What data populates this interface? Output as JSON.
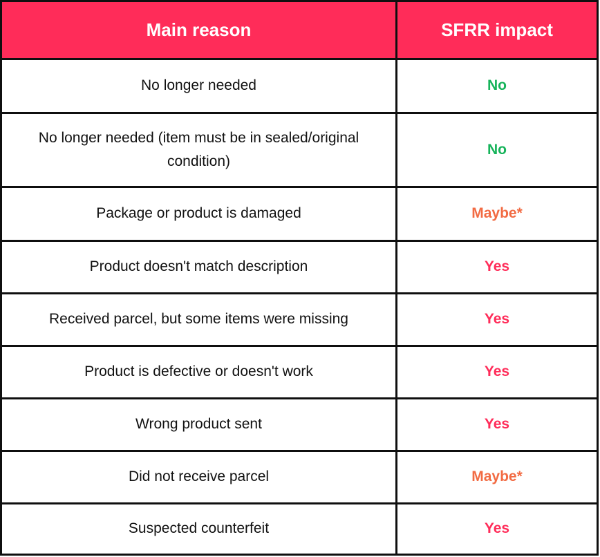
{
  "header": {
    "reason_label": "Main reason",
    "impact_label": "SFRR impact",
    "background_color": "#ff2c59"
  },
  "status_colors": {
    "No": "#16b35a",
    "Maybe*": "#f26b43",
    "Yes": "#ff2c59"
  },
  "rows": [
    {
      "reason": "No longer needed",
      "impact": "No"
    },
    {
      "reason": "No longer needed (item must be in sealed/original condition)",
      "impact": "No"
    },
    {
      "reason": "Package or product is damaged",
      "impact": "Maybe*"
    },
    {
      "reason": "Product doesn't match description",
      "impact": "Yes"
    },
    {
      "reason": "Received parcel, but some items were missing",
      "impact": "Yes"
    },
    {
      "reason": "Product is defective or doesn't work",
      "impact": "Yes"
    },
    {
      "reason": "Wrong product sent",
      "impact": "Yes"
    },
    {
      "reason": "Did not receive parcel",
      "impact": "Maybe*"
    },
    {
      "reason": "Suspected counterfeit",
      "impact": "Yes"
    }
  ]
}
